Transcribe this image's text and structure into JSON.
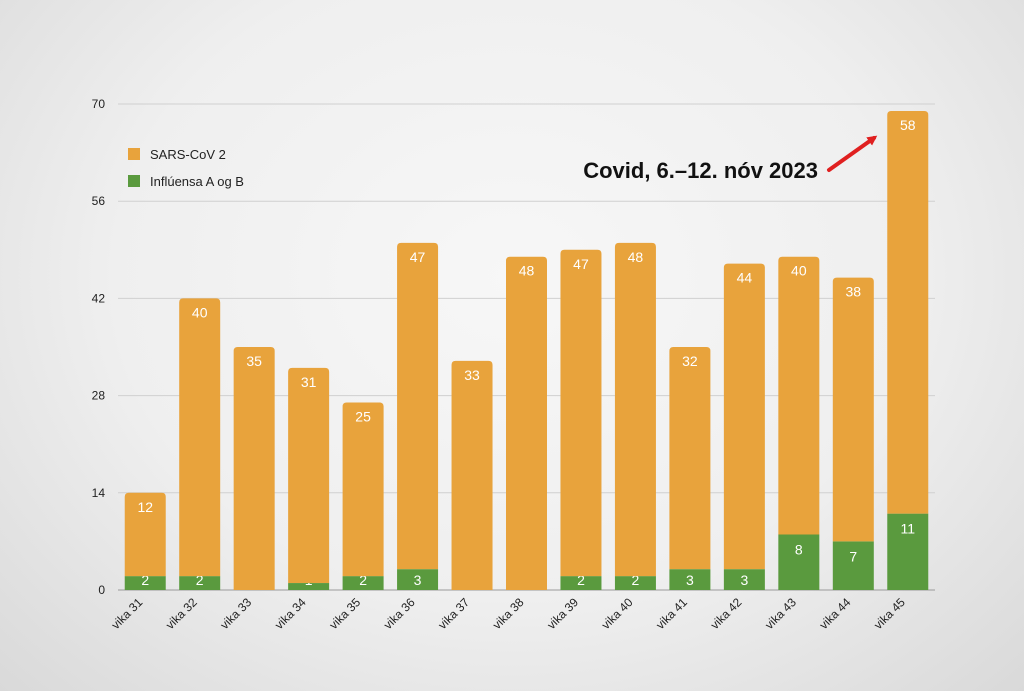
{
  "chart_data": {
    "type": "bar",
    "stacked": true,
    "title": "",
    "xlabel": "",
    "ylabel": "",
    "ylim": [
      0,
      70
    ],
    "yticks": [
      0,
      14,
      28,
      42,
      56,
      70
    ],
    "grid": true,
    "legend_position": "top-left",
    "categories": [
      "vika 31",
      "vika 32",
      "vika 33",
      "vika 34",
      "vika 35",
      "vika 36",
      "vika 37",
      "vika 38",
      "vika 39",
      "vika 40",
      "vika 41",
      "vika 42",
      "vika 43",
      "vika 44",
      "vika 45"
    ],
    "series": [
      {
        "name": "Inflúensa A og B",
        "color": "#5a9a3e",
        "values": [
          2,
          2,
          0,
          1,
          2,
          3,
          0,
          0,
          2,
          2,
          3,
          3,
          8,
          7,
          11
        ]
      },
      {
        "name": "SARS-CoV 2",
        "color": "#e8a33c",
        "values": [
          12,
          40,
          35,
          31,
          25,
          47,
          33,
          48,
          47,
          48,
          32,
          44,
          40,
          38,
          58
        ]
      }
    ],
    "legend_order": [
      "SARS-CoV 2",
      "Inflúensa A og B"
    ],
    "annotation": {
      "text": "Covid, 6.–12. nóv 2023",
      "target_category": "vika 45",
      "arrow_color": "#e02020"
    }
  }
}
